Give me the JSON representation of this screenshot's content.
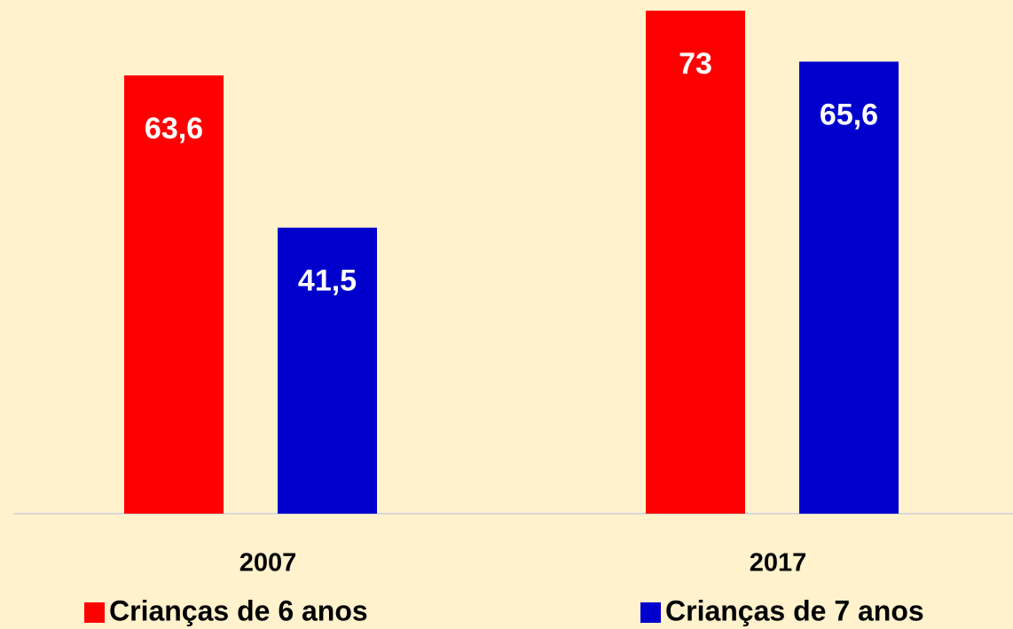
{
  "chart_data": {
    "type": "bar",
    "categories": [
      "2007",
      "2017"
    ],
    "series": [
      {
        "name": "Crianças de 6 anos",
        "color": "#ff0000",
        "values": [
          63.6,
          73
        ],
        "value_labels": [
          "63,6",
          "73"
        ]
      },
      {
        "name": "Crianças de 7 anos",
        "color": "#0000cc",
        "values": [
          41.5,
          65.6
        ],
        "value_labels": [
          "41,5",
          "65,6"
        ]
      }
    ],
    "legend": "bottom"
  }
}
